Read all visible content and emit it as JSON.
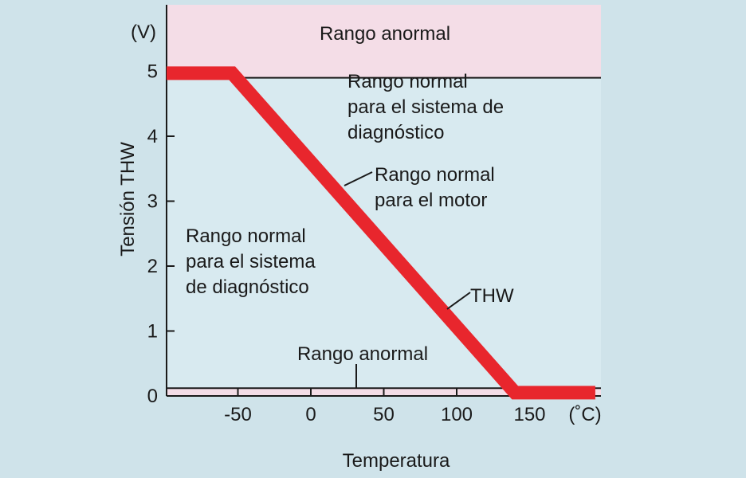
{
  "chart_data": {
    "type": "line",
    "xlabel": "Temperatura",
    "ylabel": "Tensión THW",
    "x_unit": "(˚C)",
    "y_unit": "(V)",
    "xlim": [
      -100,
      195
    ],
    "ylim": [
      0,
      5.8
    ],
    "x_ticks": [
      -50,
      0,
      50,
      100,
      150
    ],
    "y_ticks": [
      0,
      1,
      2,
      3,
      4,
      5
    ],
    "grid": false,
    "series": [
      {
        "name": "THW",
        "x": [
          -100,
          -54,
          140,
          195
        ],
        "y": [
          4.97,
          4.97,
          0.05,
          0.05
        ]
      }
    ],
    "thresholds": {
      "upper": 4.9,
      "lower": 0.12
    },
    "annotations": {
      "upper_abnormal": "Rango anormal",
      "lower_abnormal": "Rango anormal",
      "diag_right": [
        "Rango normal",
        "para el sistema de",
        "diagnóstico"
      ],
      "diag_left": [
        "Rango normal",
        "para el sistema",
        "de diagnóstico"
      ],
      "engine": [
        "Rango normal",
        "para el motor"
      ],
      "thw": "THW"
    },
    "colors": {
      "background": "#cfe3ea",
      "plot_normal": "#d8eaf0",
      "abnormal_band": "#f4dde7",
      "curve": "#e8262d",
      "axis": "#1a1a1a"
    }
  }
}
